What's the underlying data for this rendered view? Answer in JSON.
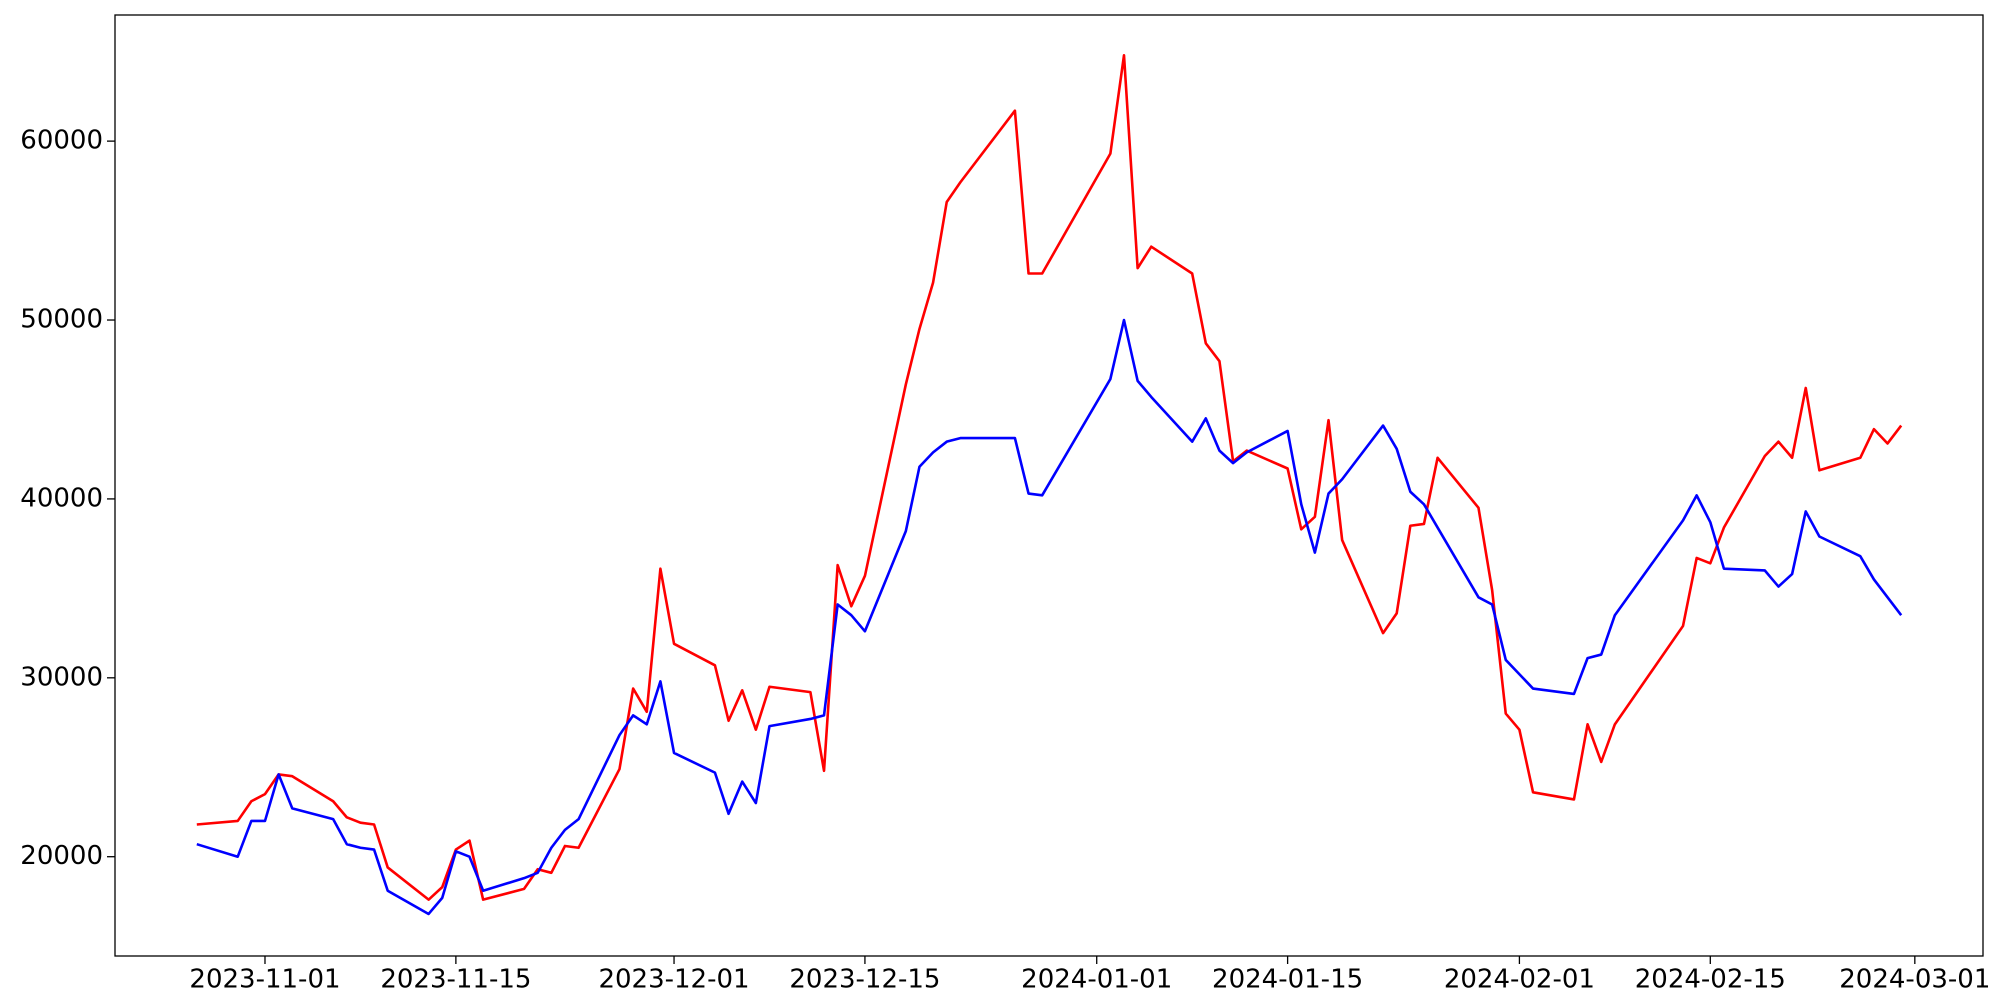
{
  "chart_data": {
    "type": "line",
    "x": [
      "2023-10-27",
      "2023-10-30",
      "2023-10-31",
      "2023-11-01",
      "2023-11-02",
      "2023-11-03",
      "2023-11-06",
      "2023-11-07",
      "2023-11-08",
      "2023-11-09",
      "2023-11-10",
      "2023-11-13",
      "2023-11-14",
      "2023-11-15",
      "2023-11-16",
      "2023-11-17",
      "2023-11-20",
      "2023-11-21",
      "2023-11-22",
      "2023-11-23",
      "2023-11-24",
      "2023-11-27",
      "2023-11-28",
      "2023-11-29",
      "2023-11-30",
      "2023-12-01",
      "2023-12-04",
      "2023-12-05",
      "2023-12-06",
      "2023-12-07",
      "2023-12-08",
      "2023-12-11",
      "2023-12-12",
      "2023-12-13",
      "2023-12-14",
      "2023-12-15",
      "2023-12-18",
      "2023-12-19",
      "2023-12-20",
      "2023-12-21",
      "2023-12-22",
      "2023-12-26",
      "2023-12-27",
      "2023-12-28",
      "2024-01-02",
      "2024-01-03",
      "2024-01-04",
      "2024-01-05",
      "2024-01-08",
      "2024-01-09",
      "2024-01-10",
      "2024-01-11",
      "2024-01-12",
      "2024-01-15",
      "2024-01-16",
      "2024-01-17",
      "2024-01-18",
      "2024-01-19",
      "2024-01-22",
      "2024-01-23",
      "2024-01-24",
      "2024-01-25",
      "2024-01-26",
      "2024-01-29",
      "2024-01-30",
      "2024-01-31",
      "2024-02-01",
      "2024-02-02",
      "2024-02-05",
      "2024-02-06",
      "2024-02-07",
      "2024-02-08",
      "2024-02-13",
      "2024-02-14",
      "2024-02-15",
      "2024-02-16",
      "2024-02-19",
      "2024-02-20",
      "2024-02-21",
      "2024-02-22",
      "2024-02-23",
      "2024-02-26",
      "2024-02-27",
      "2024-02-28",
      "2024-02-29"
    ],
    "series": [
      {
        "color": "#ff0000",
        "values": [
          21800,
          22000,
          23100,
          23500,
          24600,
          24500,
          23100,
          22200,
          21900,
          21800,
          19400,
          17600,
          18300,
          20400,
          20900,
          17600,
          18200,
          19300,
          19100,
          20600,
          20500,
          24900,
          29400,
          28100,
          36100,
          31900,
          30700,
          27600,
          29300,
          27100,
          29500,
          29200,
          24800,
          36300,
          34000,
          35700,
          46400,
          49500,
          52100,
          56600,
          57700,
          61700,
          52600,
          52600,
          59300,
          64800,
          52900,
          54100,
          52600,
          48700,
          47700,
          42100,
          42700,
          41700,
          38300,
          39000,
          44400,
          37700,
          32500,
          33600,
          38500,
          38600,
          42300,
          39500,
          34900,
          28000,
          27100,
          23600,
          23200,
          27400,
          25300,
          27400,
          32900,
          36700,
          36400,
          38400,
          42400,
          43200,
          42300,
          46200,
          41600,
          42300,
          43900,
          43100,
          44100
        ]
      },
      {
        "color": "#0000ff",
        "values": [
          20700,
          20000,
          22000,
          22000,
          24600,
          22700,
          22100,
          20700,
          20500,
          20400,
          18100,
          16800,
          17700,
          20300,
          20000,
          18100,
          18800,
          19100,
          20500,
          21500,
          22100,
          26800,
          27900,
          27400,
          29800,
          25800,
          24700,
          22400,
          24200,
          23000,
          27300,
          27700,
          27900,
          34100,
          33500,
          32600,
          38200,
          41800,
          42600,
          43200,
          43400,
          43400,
          40300,
          40200,
          46700,
          50000,
          46600,
          45700,
          43200,
          44500,
          42700,
          42000,
          42600,
          43800,
          39700,
          37000,
          40300,
          41100,
          44100,
          42800,
          40400,
          39700,
          38400,
          34500,
          34100,
          31000,
          30200,
          29400,
          29100,
          31100,
          31300,
          33500,
          38800,
          40200,
          38700,
          36100,
          36000,
          35100,
          35800,
          39300,
          37900,
          36800,
          35500,
          34500,
          33500
        ]
      }
    ],
    "xlim": [
      "2023-10-21",
      "2024-03-06"
    ],
    "xticks": [
      "2023-11-01",
      "2023-11-15",
      "2023-12-01",
      "2023-12-15",
      "2024-01-01",
      "2024-01-15",
      "2024-02-01",
      "2024-02-15",
      "2024-03-01"
    ],
    "ylim": [
      14450,
      67050
    ],
    "yticks": [
      20000,
      30000,
      40000,
      50000,
      60000
    ],
    "grid": false
  }
}
